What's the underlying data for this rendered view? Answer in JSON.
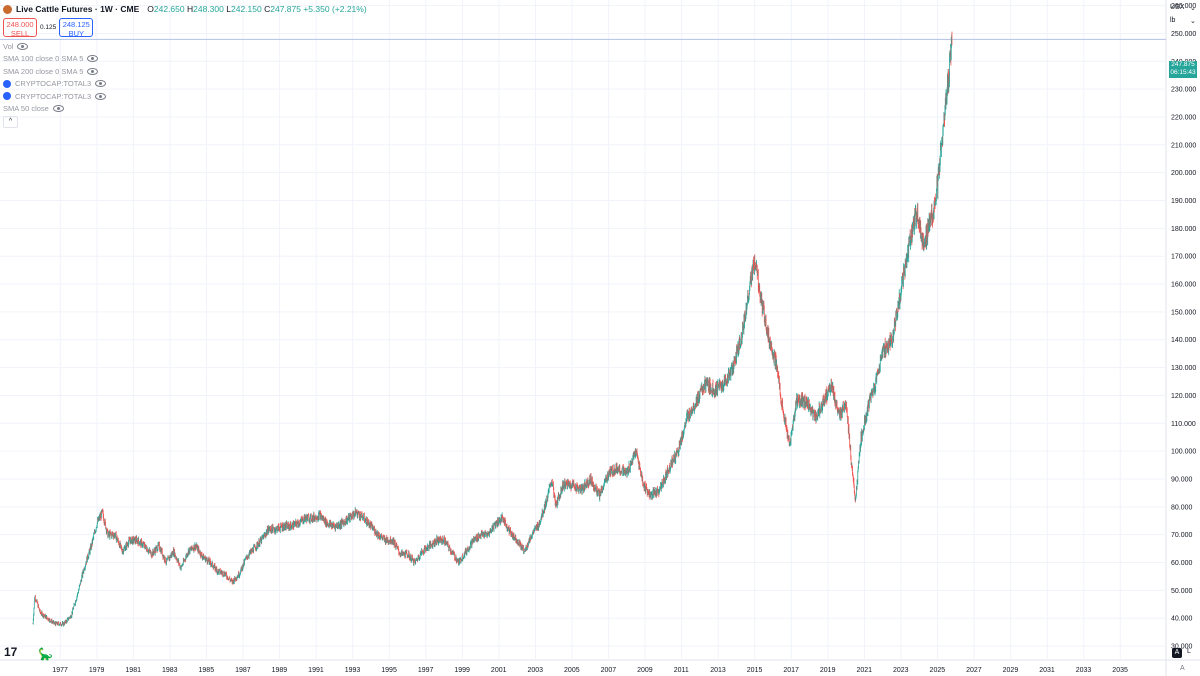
{
  "header": {
    "title": "Live Cattle Futures · 1W · CME",
    "o_label": "O",
    "o_value": "242.650",
    "h_label": "H",
    "h_value": "248.300",
    "l_label": "L",
    "l_value": "242.150",
    "c_label": "C",
    "c_value": "247.875",
    "change": "+5.350 (+2.21%)"
  },
  "trade": {
    "sell_price": "248.000",
    "sell_label": "SELL",
    "spread": "0.125",
    "buy_price": "248.125",
    "buy_label": "BUY"
  },
  "indicators": [
    {
      "label": "Vol"
    },
    {
      "label": "SMA 100 close 0 SMA 5"
    },
    {
      "label": "SMA 200 close 0 SMA 5"
    },
    {
      "label": "CRYPTOCAP:TOTAL3"
    },
    {
      "label": "CRYPTOCAP:TOTAL3"
    },
    {
      "label": "SMA 50 close"
    }
  ],
  "collapse_label": "^",
  "top_right": {
    "currency": "USX",
    "unit": "lb"
  },
  "price_tag": {
    "price": "247.875",
    "countdown": "06:15:43",
    "value": 247.875
  },
  "bottom": {
    "logo": "17",
    "auto_button": "A",
    "log_button": "L",
    "corner_label": "A"
  },
  "colors": {
    "up": "#26a69a",
    "down": "#ef5350",
    "grid": "#f0f3fa",
    "last_price_line": "#b2c1e8"
  },
  "chart_data": {
    "type": "candlestick",
    "ylim": [
      25,
      262
    ],
    "y_ticks": [
      30,
      40,
      50,
      60,
      70,
      80,
      90,
      100,
      110,
      120,
      130,
      140,
      150,
      160,
      170,
      180,
      190,
      200,
      210,
      220,
      230,
      240,
      250,
      260
    ],
    "y_tick_labels": [
      "30.000",
      "40.000",
      "50.000",
      "60.000",
      "70.000",
      "80.000",
      "90.000",
      "100.000",
      "110.000",
      "120.000",
      "130.000",
      "140.000",
      "150.000",
      "160.000",
      "170.000",
      "180.000",
      "190.000",
      "200.000",
      "210.000",
      "220.000",
      "230.000",
      "240.000",
      "250.000",
      "260.000"
    ],
    "x_range": [
      1973.7,
      2037.5
    ],
    "x_tick_years": [
      1977,
      1979,
      1981,
      1983,
      1985,
      1987,
      1989,
      1991,
      1993,
      1995,
      1997,
      1999,
      2001,
      2003,
      2005,
      2007,
      2009,
      2011,
      2013,
      2015,
      2017,
      2019,
      2021,
      2023,
      2025,
      2027,
      2029,
      2031,
      2033,
      2035
    ],
    "x_tick_labels": [
      "1977",
      "1979",
      "1981",
      "1983",
      "1985",
      "1987",
      "1989",
      "1991",
      "1993",
      "1995",
      "1997",
      "1999",
      "2001",
      "2003",
      "2005",
      "2007",
      "2009",
      "2011",
      "2013",
      "2015",
      "2017",
      "2019",
      "2021",
      "2023",
      "2025",
      "2027",
      "2029",
      "2031",
      "2033",
      "2035"
    ],
    "price_path": [
      [
        1975.5,
        38
      ],
      [
        1975.6,
        48
      ],
      [
        1975.9,
        42
      ],
      [
        1976.3,
        40
      ],
      [
        1976.7,
        38
      ],
      [
        1977.2,
        38
      ],
      [
        1977.6,
        41
      ],
      [
        1978.0,
        50
      ],
      [
        1978.3,
        58
      ],
      [
        1978.7,
        66
      ],
      [
        1979.0,
        74
      ],
      [
        1979.3,
        78
      ],
      [
        1979.6,
        70
      ],
      [
        1980.0,
        70
      ],
      [
        1980.4,
        64
      ],
      [
        1980.8,
        68
      ],
      [
        1981.2,
        68
      ],
      [
        1981.6,
        66
      ],
      [
        1982.0,
        63
      ],
      [
        1982.4,
        66
      ],
      [
        1982.8,
        60
      ],
      [
        1983.2,
        64
      ],
      [
        1983.6,
        58
      ],
      [
        1984.0,
        64
      ],
      [
        1984.4,
        66
      ],
      [
        1984.8,
        62
      ],
      [
        1985.2,
        60
      ],
      [
        1985.6,
        57
      ],
      [
        1986.0,
        56
      ],
      [
        1986.4,
        53
      ],
      [
        1986.8,
        56
      ],
      [
        1987.2,
        62
      ],
      [
        1987.6,
        65
      ],
      [
        1988.0,
        68
      ],
      [
        1988.4,
        72
      ],
      [
        1988.8,
        72
      ],
      [
        1989.2,
        73
      ],
      [
        1989.6,
        73
      ],
      [
        1990.0,
        74
      ],
      [
        1990.4,
        76
      ],
      [
        1990.8,
        76
      ],
      [
        1991.2,
        77
      ],
      [
        1991.6,
        74
      ],
      [
        1992.0,
        73
      ],
      [
        1992.4,
        74
      ],
      [
        1992.8,
        76
      ],
      [
        1993.2,
        78
      ],
      [
        1993.6,
        76
      ],
      [
        1994.0,
        73
      ],
      [
        1994.4,
        70
      ],
      [
        1994.8,
        68
      ],
      [
        1995.2,
        68
      ],
      [
        1995.6,
        63
      ],
      [
        1996.0,
        63
      ],
      [
        1996.4,
        60
      ],
      [
        1996.8,
        64
      ],
      [
        1997.2,
        66
      ],
      [
        1997.6,
        68
      ],
      [
        1998.0,
        68
      ],
      [
        1998.4,
        64
      ],
      [
        1998.8,
        60
      ],
      [
        1999.2,
        64
      ],
      [
        1999.6,
        68
      ],
      [
        2000.0,
        70
      ],
      [
        2000.4,
        70
      ],
      [
        2000.8,
        74
      ],
      [
        2001.2,
        76
      ],
      [
        2001.6,
        71
      ],
      [
        2002.0,
        68
      ],
      [
        2002.4,
        64
      ],
      [
        2002.8,
        70
      ],
      [
        2003.2,
        74
      ],
      [
        2003.6,
        82
      ],
      [
        2003.9,
        90
      ],
      [
        2004.1,
        80
      ],
      [
        2004.5,
        88
      ],
      [
        2005.0,
        88
      ],
      [
        2005.5,
        86
      ],
      [
        2006.0,
        90
      ],
      [
        2006.5,
        84
      ],
      [
        2007.0,
        92
      ],
      [
        2007.5,
        94
      ],
      [
        2008.0,
        92
      ],
      [
        2008.5,
        100
      ],
      [
        2008.9,
        88
      ],
      [
        2009.3,
        84
      ],
      [
        2009.8,
        86
      ],
      [
        2010.3,
        94
      ],
      [
        2010.8,
        100
      ],
      [
        2011.3,
        112
      ],
      [
        2011.8,
        118
      ],
      [
        2012.3,
        124
      ],
      [
        2012.8,
        122
      ],
      [
        2013.3,
        124
      ],
      [
        2013.8,
        130
      ],
      [
        2014.3,
        142
      ],
      [
        2014.8,
        162
      ],
      [
        2015.0,
        168
      ],
      [
        2015.4,
        152
      ],
      [
        2015.8,
        140
      ],
      [
        2016.2,
        130
      ],
      [
        2016.6,
        112
      ],
      [
        2016.9,
        102
      ],
      [
        2017.3,
        118
      ],
      [
        2017.8,
        118
      ],
      [
        2018.3,
        112
      ],
      [
        2018.8,
        118
      ],
      [
        2019.2,
        124
      ],
      [
        2019.6,
        112
      ],
      [
        2020.0,
        118
      ],
      [
        2020.3,
        94
      ],
      [
        2020.5,
        82
      ],
      [
        2020.8,
        104
      ],
      [
        2021.2,
        116
      ],
      [
        2021.6,
        124
      ],
      [
        2022.0,
        136
      ],
      [
        2022.5,
        140
      ],
      [
        2023.0,
        158
      ],
      [
        2023.5,
        176
      ],
      [
        2023.9,
        186
      ],
      [
        2024.2,
        174
      ],
      [
        2024.6,
        182
      ],
      [
        2024.9,
        190
      ],
      [
        2025.2,
        208
      ],
      [
        2025.5,
        228
      ],
      [
        2025.65,
        238
      ],
      [
        2025.8,
        247.875
      ]
    ]
  }
}
